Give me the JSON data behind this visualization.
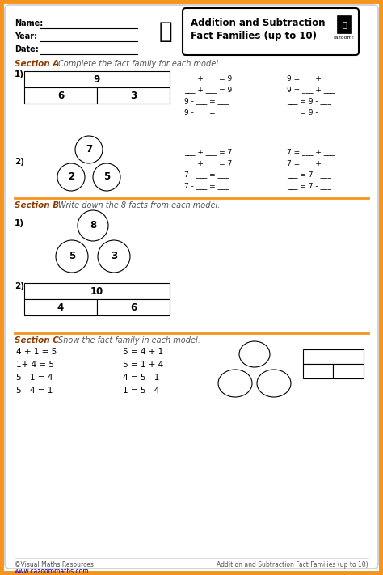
{
  "bg_color": "#FFFFFF",
  "border_color": "#F7941D",
  "title_line1": "Addition and Subtraction",
  "title_line2": "Fact Families (up to 10)",
  "section_a_label": "Section A",
  "section_a_text": "Complete the fact family for each model.",
  "section_b_label": "Section B",
  "section_b_text": "Write down the 8 facts from each model.",
  "section_c_label": "Section C",
  "section_c_text": "Show the fact family in each model.",
  "footer_left1": "©Visual Maths Resources",
  "footer_left2": "www.cazoommaths.com",
  "footer_right": "Addition and Subtraction Fact Families (up to 10)",
  "orange": "#F7941D",
  "dark_orange": "#8B4513",
  "section_label_color": "#8B3A00",
  "gray_text": "#555555",
  "black": "#000000",
  "white": "#FFFFFF",
  "label_color": "#333333"
}
